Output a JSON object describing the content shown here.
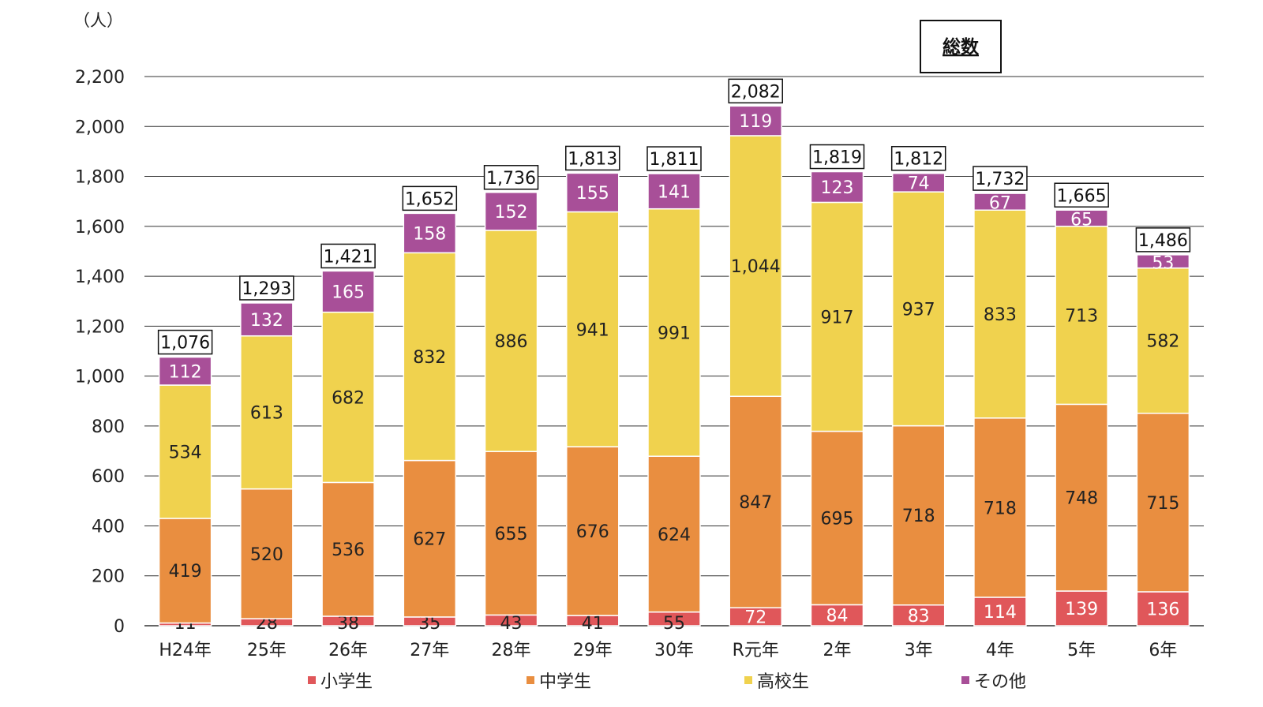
{
  "chart_data": {
    "type": "bar",
    "stacked": true,
    "title": "総数",
    "unit": "（人）",
    "categories": [
      "H24年",
      "25年",
      "26年",
      "27年",
      "28年",
      "29年",
      "30年",
      "R元年",
      "2年",
      "3年",
      "4年",
      "5年",
      "6年"
    ],
    "series": [
      {
        "name": "小学生",
        "color": "#e0575a",
        "values": [
          11,
          28,
          38,
          35,
          43,
          41,
          55,
          72,
          84,
          83,
          114,
          139,
          136
        ]
      },
      {
        "name": "中学生",
        "color": "#e98e40",
        "values": [
          419,
          520,
          536,
          627,
          655,
          676,
          624,
          847,
          695,
          718,
          718,
          748,
          715
        ]
      },
      {
        "name": "高校生",
        "color": "#f0d24e",
        "values": [
          534,
          613,
          682,
          832,
          886,
          941,
          991,
          1044,
          917,
          937,
          833,
          713,
          582
        ]
      },
      {
        "name": "その他",
        "color": "#a84f98",
        "values": [
          112,
          132,
          165,
          158,
          152,
          155,
          141,
          119,
          123,
          74,
          67,
          65,
          53
        ]
      }
    ],
    "labels": {
      "小学生": [
        "11",
        "28",
        "38",
        "35",
        "43",
        "41",
        "55",
        "72",
        "84",
        "83",
        "114",
        "139",
        "136"
      ],
      "中学生": [
        "419",
        "520",
        "536",
        "627",
        "655",
        "676",
        "624",
        "847",
        "695",
        "718",
        "718",
        "748",
        "715"
      ],
      "高校生": [
        "534",
        "613",
        "682",
        "832",
        "886",
        "941",
        "991",
        "1,044",
        "917",
        "937",
        "833",
        "713",
        "582"
      ],
      "その他": [
        "112",
        "132",
        "165",
        "158",
        "152",
        "155",
        "141",
        "119",
        "123",
        "74",
        "67",
        "65",
        "53"
      ]
    },
    "totals": [
      1076,
      1293,
      1421,
      1652,
      1736,
      1813,
      1811,
      2082,
      1819,
      1812,
      1732,
      1665,
      1486
    ],
    "total_labels": [
      "1,076",
      "1,293",
      "1,421",
      "1,652",
      "1,736",
      "1,813",
      "1,811",
      "2,082",
      "1,819",
      "1,812",
      "1,732",
      "1,665",
      "1,486"
    ],
    "ylim": [
      0,
      2200
    ],
    "yticks": [
      0,
      200,
      400,
      600,
      800,
      1000,
      1200,
      1400,
      1600,
      1800,
      2000,
      2200
    ],
    "ytick_labels": [
      "0",
      "200",
      "400",
      "600",
      "800",
      "1,000",
      "1,200",
      "1,400",
      "1,600",
      "1,800",
      "2,000",
      "2,200"
    ],
    "grid": true,
    "legend_position": "bottom"
  }
}
